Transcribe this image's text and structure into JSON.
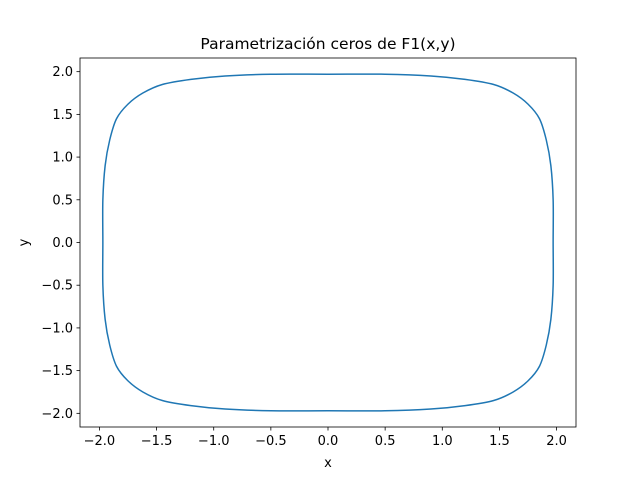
{
  "chart_data": {
    "type": "line",
    "title": "Parametrización ceros de F1(x,y)",
    "xlabel": "x",
    "ylabel": "y",
    "xlim": [
      -2.17,
      2.17
    ],
    "ylim": [
      -2.16,
      2.16
    ],
    "xticks": [
      -2.0,
      -1.5,
      -1.0,
      -0.5,
      0.0,
      0.5,
      1.0,
      1.5,
      2.0
    ],
    "xtick_labels": [
      "−2.0",
      "−1.5",
      "−1.0",
      "−0.5",
      "0.0",
      "0.5",
      "1.0",
      "1.5",
      "2.0"
    ],
    "yticks": [
      -2.0,
      -1.5,
      -1.0,
      -0.5,
      0.0,
      0.5,
      1.0,
      1.5,
      2.0
    ],
    "ytick_labels": [
      "−2.0",
      "−1.5",
      "−1.0",
      "−0.5",
      "0.0",
      "0.5",
      "1.0",
      "1.5",
      "2.0"
    ],
    "grid": false,
    "legend": "none",
    "series": [
      {
        "color": "#1f77b4",
        "x": [
          0.0,
          0.5,
          0.9,
          1.2,
          1.45,
          1.62,
          1.75,
          1.85,
          1.91,
          1.95,
          1.97,
          1.97,
          1.97,
          1.95,
          1.91,
          1.85,
          1.75,
          1.62,
          1.45,
          1.2,
          0.9,
          0.5,
          0.0,
          -0.5,
          -0.9,
          -1.2,
          -1.45,
          -1.62,
          -1.75,
          -1.85,
          -1.91,
          -1.95,
          -1.97,
          -1.97,
          -1.97,
          -1.95,
          -1.91,
          -1.85,
          -1.75,
          -1.62,
          -1.45,
          -1.2,
          -0.9,
          -0.5,
          0.0
        ],
        "y": [
          1.97,
          1.97,
          1.95,
          1.91,
          1.85,
          1.75,
          1.62,
          1.45,
          1.2,
          0.9,
          0.5,
          0.0,
          -0.5,
          -0.9,
          -1.2,
          -1.45,
          -1.62,
          -1.75,
          -1.85,
          -1.91,
          -1.95,
          -1.97,
          -1.97,
          -1.97,
          -1.95,
          -1.91,
          -1.85,
          -1.75,
          -1.62,
          -1.45,
          -1.2,
          -0.9,
          -0.5,
          0.0,
          0.5,
          0.9,
          1.2,
          1.45,
          1.62,
          1.75,
          1.85,
          1.91,
          1.95,
          1.97,
          1.97
        ]
      }
    ]
  }
}
